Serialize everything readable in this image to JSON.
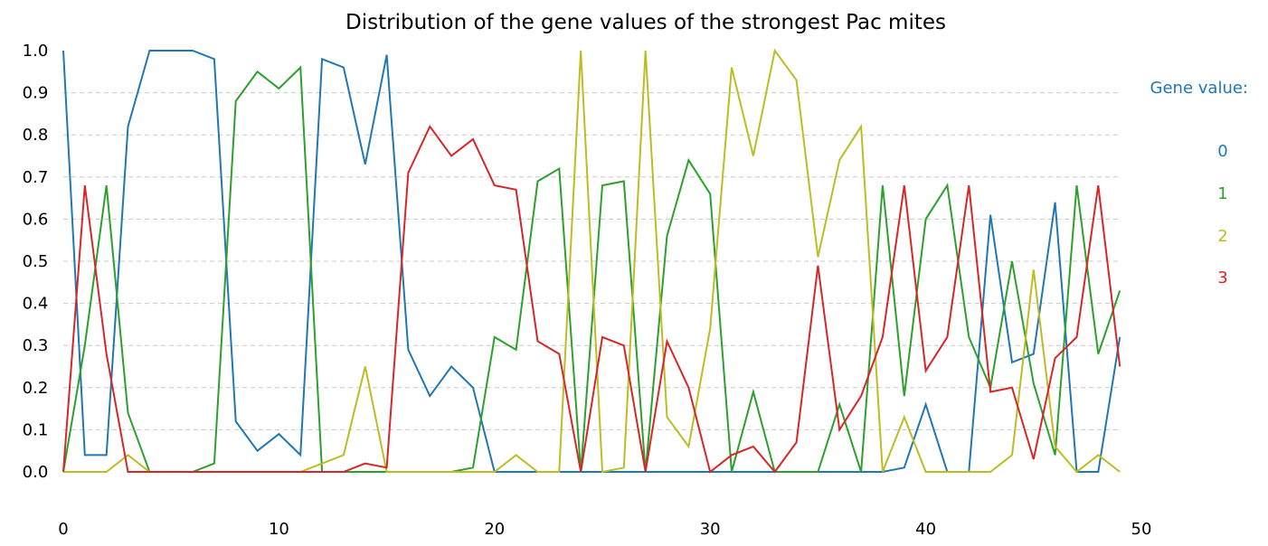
{
  "chart_data": {
    "type": "line",
    "title": "Distribution of the gene values of the strongest Pac mites",
    "xlabel": "",
    "ylabel": "",
    "xlim": [
      0,
      50
    ],
    "ylim": [
      0,
      1.0
    ],
    "x_ticks": [
      0,
      10,
      20,
      30,
      40,
      50
    ],
    "x_tick_labels": [
      "0",
      "10",
      "20",
      "30",
      "40",
      "50"
    ],
    "y_ticks": [
      0.0,
      0.1,
      0.2,
      0.3,
      0.4,
      0.5,
      0.6,
      0.7,
      0.8,
      0.9,
      1.0
    ],
    "y_tick_labels": [
      "0.0",
      "0.1",
      "0.2",
      "0.3",
      "0.4",
      "0.5",
      "0.6",
      "0.7",
      "0.8",
      "0.9",
      "1.0"
    ],
    "grid": "horizontal dashed",
    "legend_title": "Gene value:",
    "legend_title_color": "#1f77b4",
    "legend_placement": "right",
    "x": [
      0,
      1,
      2,
      3,
      4,
      5,
      6,
      7,
      8,
      9,
      10,
      11,
      12,
      13,
      14,
      15,
      16,
      17,
      18,
      19,
      20,
      21,
      22,
      23,
      24,
      25,
      26,
      27,
      28,
      29,
      30,
      31,
      32,
      33,
      34,
      35,
      36,
      37,
      38,
      39,
      40,
      41,
      42,
      43,
      44,
      45,
      46,
      47,
      48,
      49
    ],
    "series": [
      {
        "name": "0",
        "color": "#1f77b4",
        "values": [
          1.0,
          0.04,
          0.04,
          0.82,
          1.0,
          1.0,
          1.0,
          0.98,
          0.12,
          0.05,
          0.09,
          0.04,
          0.98,
          0.96,
          0.73,
          0.99,
          0.29,
          0.18,
          0.25,
          0.2,
          0.0,
          0.0,
          0.0,
          0.0,
          0.0,
          0.0,
          0.0,
          0.0,
          0.0,
          0.0,
          0.0,
          0.0,
          0.0,
          0.0,
          0.0,
          0.0,
          0.0,
          0.0,
          0.0,
          0.01,
          0.16,
          0.0,
          0.0,
          0.61,
          0.26,
          0.28,
          0.64,
          0.0,
          0.0,
          0.32
        ]
      },
      {
        "name": "1",
        "color": "#2ca02c",
        "values": [
          0.0,
          0.3,
          0.68,
          0.14,
          0.0,
          0.0,
          0.0,
          0.02,
          0.88,
          0.95,
          0.91,
          0.96,
          0.0,
          0.0,
          0.0,
          0.0,
          0.0,
          0.0,
          0.0,
          0.01,
          0.32,
          0.29,
          0.69,
          0.72,
          0.0,
          0.68,
          0.69,
          0.0,
          0.56,
          0.74,
          0.66,
          0.0,
          0.19,
          0.0,
          0.0,
          0.0,
          0.16,
          0.0,
          0.68,
          0.18,
          0.6,
          0.68,
          0.32,
          0.2,
          0.5,
          0.21,
          0.04,
          0.68,
          0.28,
          0.43
        ]
      },
      {
        "name": "2",
        "color": "#bcbd22",
        "values": [
          0.0,
          0.0,
          0.0,
          0.04,
          0.0,
          0.0,
          0.0,
          0.0,
          0.0,
          0.0,
          0.0,
          0.0,
          0.02,
          0.04,
          0.25,
          0.0,
          0.0,
          0.0,
          0.0,
          0.0,
          0.0,
          0.04,
          0.0,
          0.0,
          1.0,
          0.0,
          0.01,
          1.0,
          0.13,
          0.06,
          0.34,
          0.96,
          0.75,
          1.0,
          0.93,
          0.51,
          0.74,
          0.82,
          0.0,
          0.13,
          0.0,
          0.0,
          0.0,
          0.0,
          0.04,
          0.48,
          0.06,
          0.0,
          0.04,
          0.0
        ]
      },
      {
        "name": "3",
        "color": "#d62728",
        "values": [
          0.0,
          0.68,
          0.28,
          0.0,
          0.0,
          0.0,
          0.0,
          0.0,
          0.0,
          0.0,
          0.0,
          0.0,
          0.0,
          0.0,
          0.02,
          0.01,
          0.71,
          0.82,
          0.75,
          0.79,
          0.68,
          0.67,
          0.31,
          0.28,
          0.0,
          0.32,
          0.3,
          0.0,
          0.31,
          0.2,
          0.0,
          0.04,
          0.06,
          0.0,
          0.07,
          0.49,
          0.1,
          0.18,
          0.32,
          0.68,
          0.24,
          0.32,
          0.68,
          0.19,
          0.2,
          0.03,
          0.27,
          0.32,
          0.68,
          0.25
        ]
      }
    ]
  }
}
